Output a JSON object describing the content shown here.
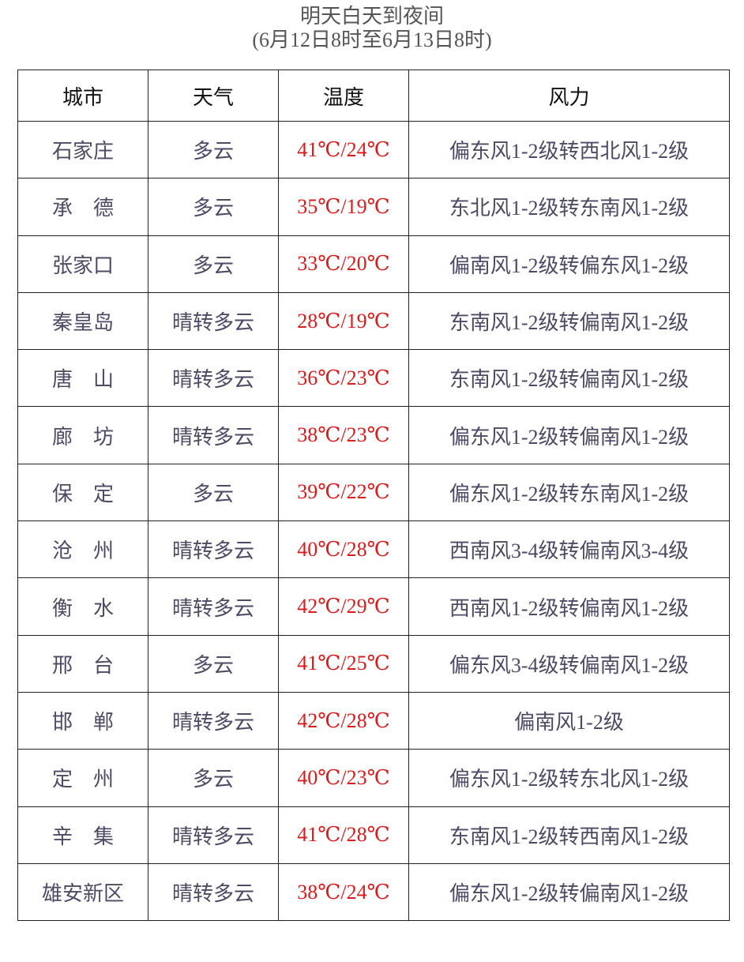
{
  "title": {
    "line1": "明天白天到夜间",
    "line2": "(6月12日8时至6月13日8时)"
  },
  "colors": {
    "text": "#4e4a66",
    "temperature": "#d91c1c",
    "header": "#111111"
  },
  "table": {
    "headers": [
      "城市",
      "天气",
      "温度",
      "风力"
    ],
    "rows": [
      [
        "石家庄",
        "多云",
        "41℃/24℃",
        "偏东风1-2级转西北风1-2级"
      ],
      [
        "承　德",
        "多云",
        "35℃/19℃",
        "东北风1-2级转东南风1-2级"
      ],
      [
        "张家口",
        "多云",
        "33℃/20℃",
        "偏南风1-2级转偏东风1-2级"
      ],
      [
        "秦皇岛",
        "晴转多云",
        "28℃/19℃",
        "东南风1-2级转偏南风1-2级"
      ],
      [
        "唐　山",
        "晴转多云",
        "36℃/23℃",
        "东南风1-2级转偏南风1-2级"
      ],
      [
        "廊　坊",
        "晴转多云",
        "38℃/23℃",
        "偏东风1-2级转偏南风1-2级"
      ],
      [
        "保　定",
        "多云",
        "39℃/22℃",
        "偏东风1-2级转东南风1-2级"
      ],
      [
        "沧　州",
        "晴转多云",
        "40℃/28℃",
        "西南风3-4级转偏南风3-4级"
      ],
      [
        "衡　水",
        "晴转多云",
        "42℃/29℃",
        "西南风1-2级转偏南风1-2级"
      ],
      [
        "邢　台",
        "多云",
        "41℃/25℃",
        "偏东风3-4级转偏南风1-2级"
      ],
      [
        "邯　郸",
        "晴转多云",
        "42℃/28℃",
        "偏南风1-2级"
      ],
      [
        "定　州",
        "多云",
        "40℃/23℃",
        "偏东风1-2级转东北风1-2级"
      ],
      [
        "辛　集",
        "晴转多云",
        "41℃/28℃",
        "东南风1-2级转西南风1-2级"
      ],
      [
        "雄安新区",
        "晴转多云",
        "38℃/24℃",
        "偏东风1-2级转偏南风1-2级"
      ]
    ]
  }
}
